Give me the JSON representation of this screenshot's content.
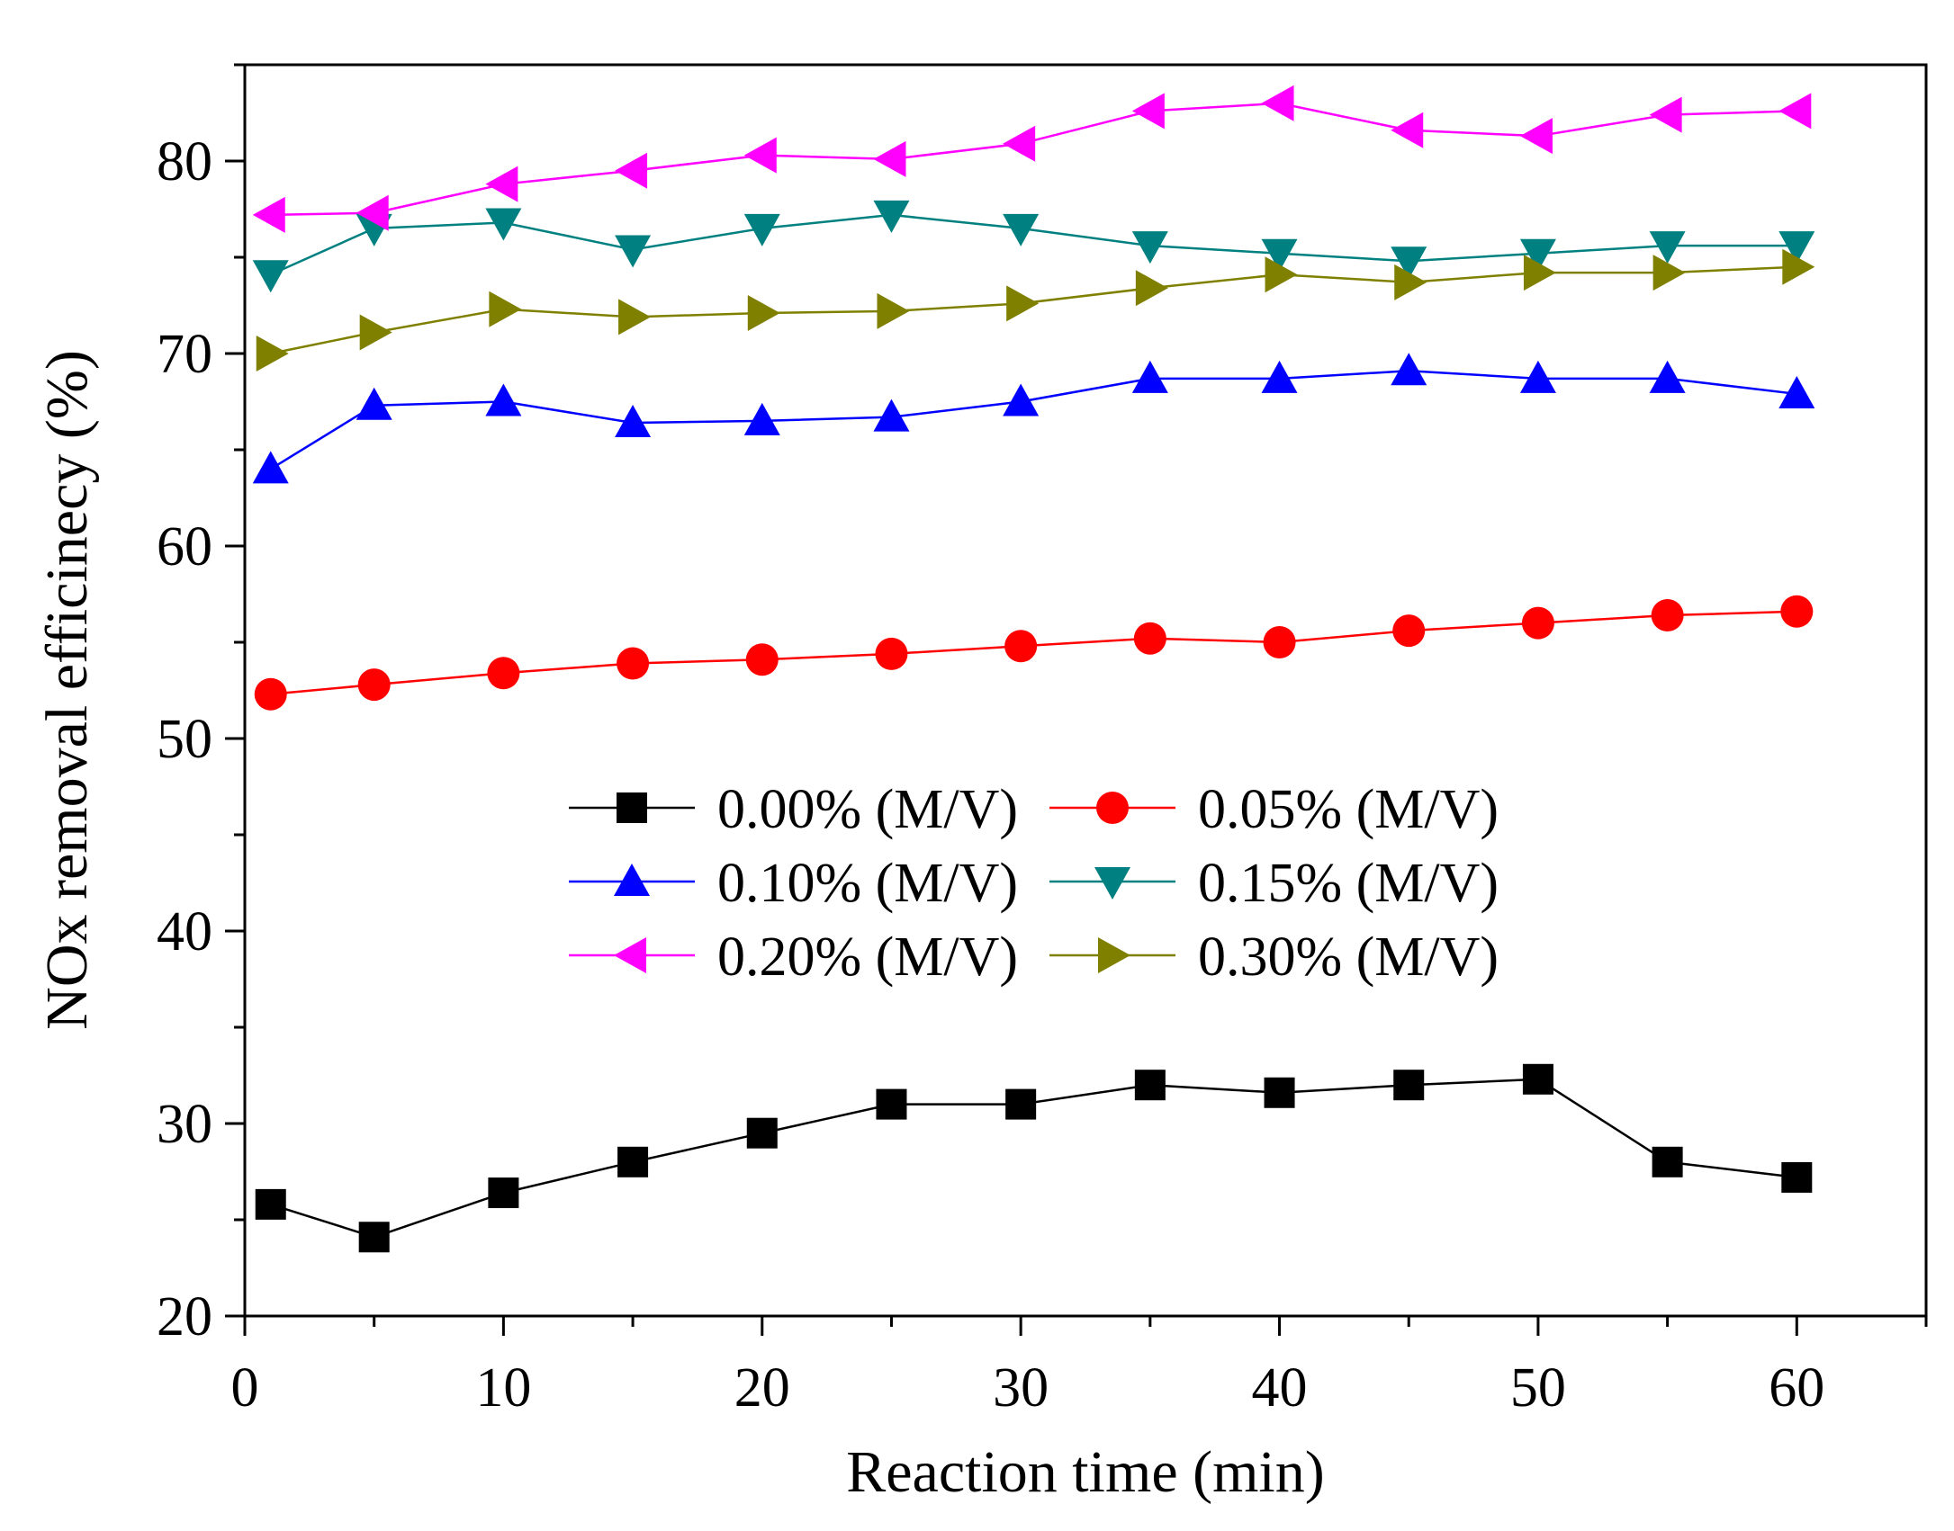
{
  "chart_data": {
    "type": "line",
    "title": "",
    "xlabel": "Reaction time (min)",
    "ylabel": "NOx removal efficinecy (%)",
    "xlim": [
      0,
      65
    ],
    "ylim": [
      20,
      85
    ],
    "xticks": [
      0,
      10,
      20,
      30,
      40,
      50,
      60
    ],
    "yticks": [
      20,
      30,
      40,
      50,
      60,
      70,
      80
    ],
    "grid": false,
    "legend_position": "center",
    "x": [
      1,
      5,
      10,
      15,
      20,
      25,
      30,
      35,
      40,
      45,
      50,
      55,
      60
    ],
    "series": [
      {
        "name": "0.00% (M/V)",
        "color": "#000000",
        "marker": "square",
        "values": [
          25.8,
          24.1,
          26.4,
          28.0,
          29.5,
          31.0,
          31.0,
          32.0,
          31.6,
          32.0,
          32.3,
          28.0,
          27.2
        ]
      },
      {
        "name": "0.05% (M/V)",
        "color": "#ff0000",
        "marker": "circle",
        "values": [
          52.3,
          52.8,
          53.4,
          53.9,
          54.1,
          54.4,
          54.8,
          55.2,
          55.0,
          55.6,
          56.0,
          56.4,
          56.6
        ]
      },
      {
        "name": "0.10% (M/V)",
        "color": "#0000ff",
        "marker": "triangle-up",
        "values": [
          64.0,
          67.3,
          67.5,
          66.4,
          66.5,
          66.7,
          67.5,
          68.7,
          68.7,
          69.1,
          68.7,
          68.7,
          67.9
        ]
      },
      {
        "name": "0.15% (M/V)",
        "color": "#008080",
        "marker": "triangle-down",
        "values": [
          74.1,
          76.5,
          76.8,
          75.4,
          76.5,
          77.2,
          76.5,
          75.6,
          75.2,
          74.8,
          75.2,
          75.6,
          75.6
        ]
      },
      {
        "name": "0.20% (M/V)",
        "color": "#ff00ff",
        "marker": "triangle-left",
        "values": [
          77.2,
          77.3,
          78.8,
          79.5,
          80.3,
          80.1,
          80.9,
          82.6,
          83.0,
          81.6,
          81.3,
          82.4,
          82.6
        ]
      },
      {
        "name": "0.30% (M/V)",
        "color": "#808000",
        "marker": "triangle-right",
        "values": [
          70.0,
          71.1,
          72.3,
          71.9,
          72.1,
          72.2,
          72.6,
          73.4,
          74.1,
          73.7,
          74.2,
          74.2,
          74.5
        ]
      }
    ]
  }
}
